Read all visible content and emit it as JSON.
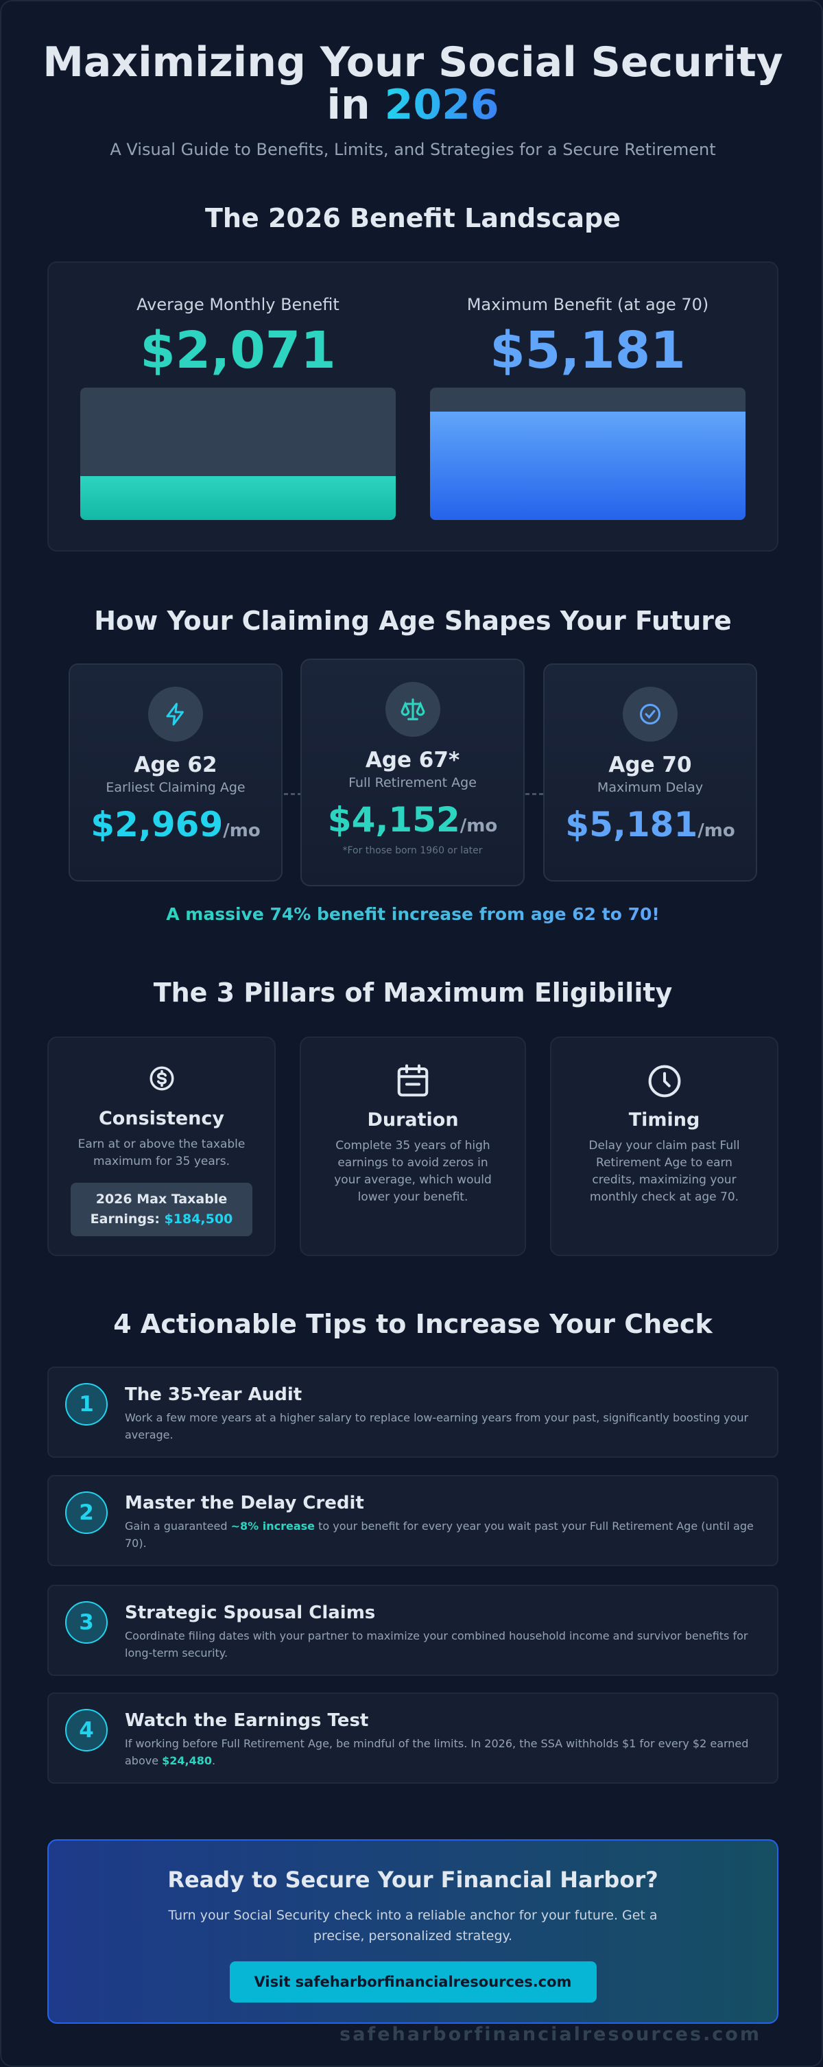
{
  "header": {
    "title": "Maximizing Your Social Security",
    "title_prefix": "in",
    "title_highlight": "2026",
    "subtitle": "A Visual Guide to Benefits, Limits, and Strategies for a Secure Retirement"
  },
  "landscape": {
    "heading": "The 2026 Benefit Landscape",
    "items": [
      {
        "label": "Average Monthly Benefit",
        "value": "$2,071"
      },
      {
        "label": "Maximum Benefit (at age 70)",
        "value": "$5,181"
      }
    ]
  },
  "claiming": {
    "heading": "How Your Claiming Age Shapes Your Future",
    "cards": [
      {
        "age": "Age 62",
        "label": "Earliest Claiming Age",
        "value": "$2,969",
        "unit": "/mo"
      },
      {
        "age": "Age 67*",
        "label": "Full Retirement Age",
        "value": "$4,152",
        "unit": "/mo",
        "note": "*For those born 1960 or later"
      },
      {
        "age": "Age 70",
        "label": "Maximum Delay",
        "value": "$5,181",
        "unit": "/mo"
      }
    ],
    "highlight": "A massive 74% benefit increase from age 62 to 70!"
  },
  "pillars": {
    "heading": "The 3 Pillars of Maximum Eligibility",
    "items": [
      {
        "title": "Consistency",
        "text": "Earn at or above the taxable maximum for 35 years."
      },
      {
        "title": "Duration",
        "text": "Complete 35 years of high earnings to avoid zeros in your average, which would lower your benefit."
      },
      {
        "title": "Timing",
        "text": "Delay your claim past Full Retirement Age to earn credits, maximizing your monthly check at age 70."
      }
    ],
    "callout": {
      "label": "2026 Max Taxable Earnings:",
      "value": "$184,500"
    }
  },
  "tips": {
    "heading": "4 Actionable Tips to Increase Your Check",
    "items": [
      {
        "number": "1",
        "title": "The 35-Year Audit",
        "text": "Work a few more years at a higher salary to replace low-earning years from your past, significantly boosting your average."
      },
      {
        "number": "2",
        "title": "Master the Delay Credit",
        "text_before": "Gain a guaranteed",
        "highlight": "~8% increase",
        "text_after": "to your benefit for every year you wait past your Full Retirement Age (until age 70)."
      },
      {
        "number": "3",
        "title": "Strategic Spousal Claims",
        "text": "Coordinate filing dates with your partner to maximize your combined household income and survivor benefits for long-term security."
      },
      {
        "number": "4",
        "title": "Watch the Earnings Test",
        "text_before": "If working before Full Retirement Age, be mindful of the limits. In 2026, the SSA withholds $1 for every $2 earned above",
        "highlight": "$24,480",
        "text_after": "."
      }
    ]
  },
  "cta": {
    "heading": "Ready to Secure Your Financial Harbor?",
    "text": "Turn your Social Security check into a reliable anchor for your future. Get a precise, personalized strategy.",
    "button": "Visit safeharborfinancialresources.com"
  },
  "footer": "safeharborfinancialresources.com"
}
